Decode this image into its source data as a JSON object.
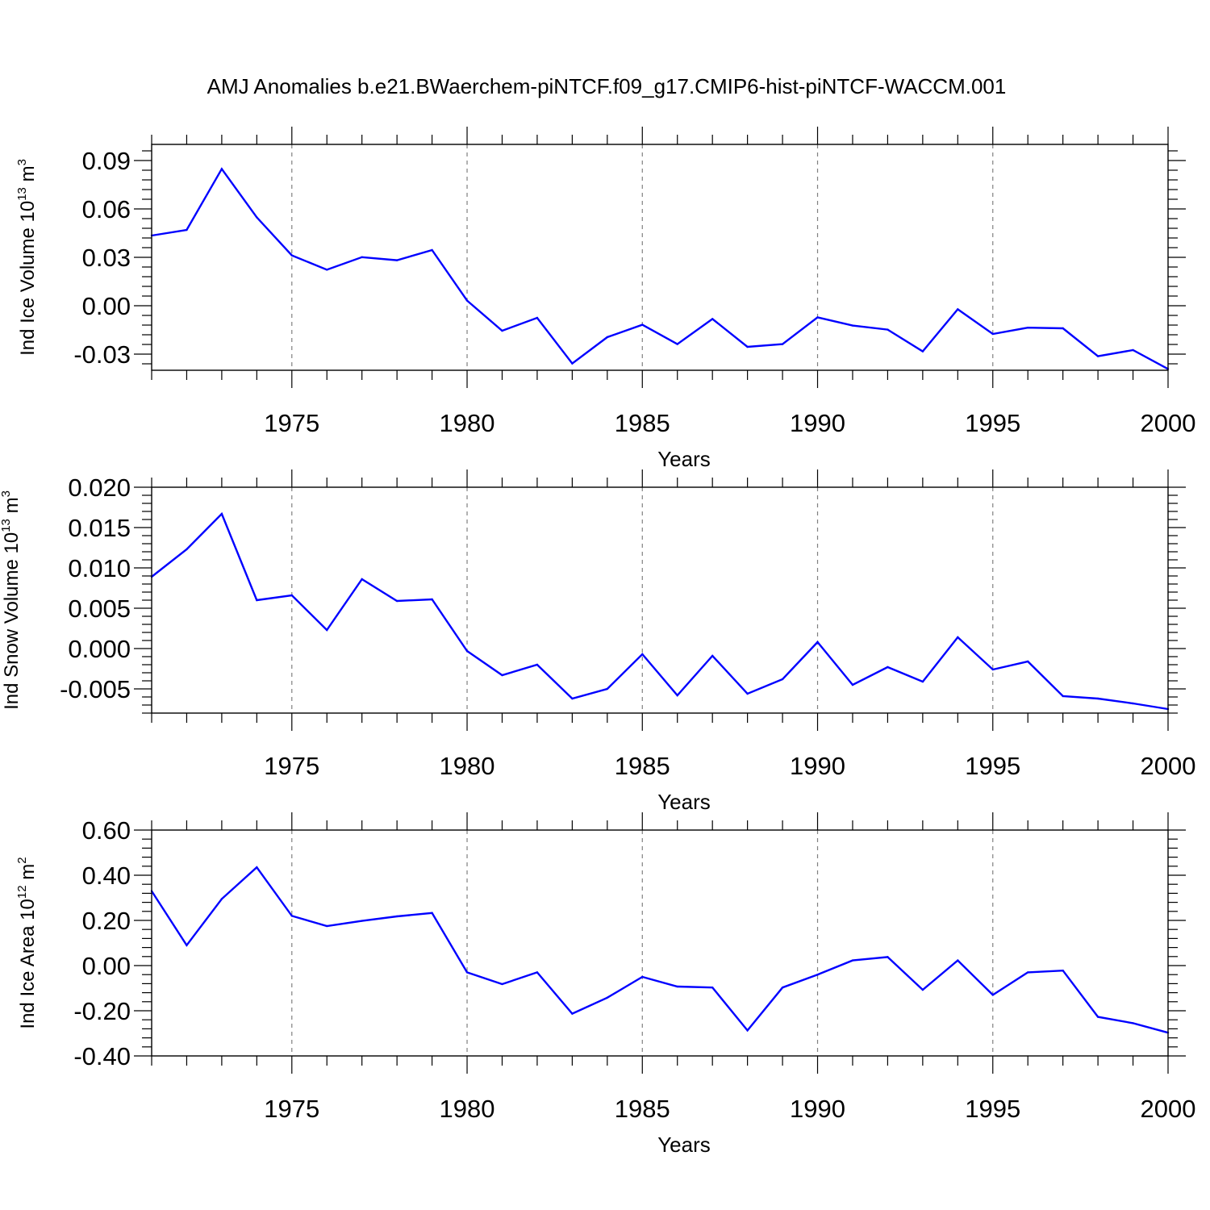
{
  "figure_title": "AMJ Anomalies b.e21.BWaerchem-piNTCF.f09_g17.CMIP6-hist-piNTCF-WACCM.001",
  "colors": {
    "line": "#0000ff",
    "axis": "#000000",
    "grid": "#808080"
  },
  "chart_data": [
    {
      "type": "line",
      "ylabel": {
        "text": "Ind Ice Volume 10",
        "exp": "13",
        "unit": " m",
        "unit_exp": "3"
      },
      "xlabel": "Years",
      "xlim": [
        1971,
        2000
      ],
      "ylim": [
        -0.04,
        0.1
      ],
      "yticks": [
        -0.03,
        0.0,
        0.03,
        0.06,
        0.09
      ],
      "ytick_labels": [
        "-0.03",
        "0.00",
        "0.03",
        "0.06",
        "0.09"
      ],
      "xticks": [
        1975,
        1980,
        1985,
        1990,
        1995,
        2000
      ],
      "xtick_labels": [
        "1975",
        "1980",
        "1985",
        "1990",
        "1995",
        "2000"
      ],
      "grid": "vertical dashed at major x ticks",
      "x": [
        1971,
        1972,
        1973,
        1974,
        1975,
        1976,
        1977,
        1978,
        1979,
        1980,
        1981,
        1982,
        1983,
        1984,
        1985,
        1986,
        1987,
        1988,
        1989,
        1990,
        1991,
        1992,
        1993,
        1994,
        1995,
        1996,
        1997,
        1998,
        1999,
        2000
      ],
      "values": [
        0.0435,
        0.047,
        0.0848,
        0.0548,
        0.0312,
        0.0223,
        0.0301,
        0.0282,
        0.0345,
        0.0032,
        -0.0155,
        -0.0075,
        -0.0358,
        -0.0195,
        -0.0118,
        -0.0238,
        -0.0082,
        -0.0255,
        -0.0238,
        -0.0072,
        -0.0123,
        -0.0148,
        -0.0283,
        -0.0022,
        -0.0175,
        -0.0136,
        -0.014,
        -0.0313,
        -0.0275,
        -0.0392
      ]
    },
    {
      "type": "line",
      "ylabel": {
        "text": "Ind Snow Volume 10",
        "exp": "13",
        "unit": " m",
        "unit_exp": "3"
      },
      "xlabel": "Years",
      "xlim": [
        1971,
        2000
      ],
      "ylim": [
        -0.008,
        0.02
      ],
      "yticks": [
        -0.005,
        0.0,
        0.005,
        0.01,
        0.015,
        0.02
      ],
      "ytick_labels": [
        "-0.005",
        "0.000",
        "0.005",
        "0.010",
        "0.015",
        "0.020"
      ],
      "xticks": [
        1975,
        1980,
        1985,
        1990,
        1995,
        2000
      ],
      "xtick_labels": [
        "1975",
        "1980",
        "1985",
        "1990",
        "1995",
        "2000"
      ],
      "grid": "vertical dashed at major x ticks",
      "x": [
        1971,
        1972,
        1973,
        1974,
        1975,
        1976,
        1977,
        1978,
        1979,
        1980,
        1981,
        1982,
        1983,
        1984,
        1985,
        1986,
        1987,
        1988,
        1989,
        1990,
        1991,
        1992,
        1993,
        1994,
        1995,
        1996,
        1997,
        1998,
        1999,
        2000
      ],
      "values": [
        0.0089,
        0.0123,
        0.0167,
        0.006,
        0.0066,
        0.0023,
        0.0086,
        0.0059,
        0.0061,
        -0.0003,
        -0.0033,
        -0.002,
        -0.0062,
        -0.005,
        -0.0007,
        -0.0058,
        -0.0009,
        -0.0056,
        -0.0038,
        0.0008,
        -0.0045,
        -0.0023,
        -0.0041,
        0.0014,
        -0.0026,
        -0.0016,
        -0.0059,
        -0.0062,
        -0.0068,
        -0.0075
      ]
    },
    {
      "type": "line",
      "ylabel": {
        "text": "Ind Ice Area 10",
        "exp": "12",
        "unit": " m",
        "unit_exp": "2"
      },
      "xlabel": "Years",
      "xlim": [
        1971,
        2000
      ],
      "ylim": [
        -0.4,
        0.6
      ],
      "yticks": [
        -0.4,
        -0.2,
        0.0,
        0.2,
        0.4,
        0.6
      ],
      "ytick_labels": [
        "-0.40",
        "-0.20",
        "0.00",
        "0.20",
        "0.40",
        "0.60"
      ],
      "xticks": [
        1975,
        1980,
        1985,
        1990,
        1995,
        2000
      ],
      "xtick_labels": [
        "1975",
        "1980",
        "1985",
        "1990",
        "1995",
        "2000"
      ],
      "grid": "vertical dashed at major x ticks",
      "x": [
        1971,
        1972,
        1973,
        1974,
        1975,
        1976,
        1977,
        1978,
        1979,
        1980,
        1981,
        1982,
        1983,
        1984,
        1985,
        1986,
        1987,
        1988,
        1989,
        1990,
        1991,
        1992,
        1993,
        1994,
        1995,
        1996,
        1997,
        1998,
        1999,
        2000
      ],
      "values": [
        0.33,
        0.09,
        0.295,
        0.435,
        0.22,
        0.175,
        0.198,
        0.218,
        0.233,
        -0.03,
        -0.082,
        -0.03,
        -0.213,
        -0.142,
        -0.05,
        -0.093,
        -0.097,
        -0.287,
        -0.097,
        -0.04,
        0.023,
        0.038,
        -0.107,
        0.023,
        -0.13,
        -0.03,
        -0.022,
        -0.227,
        -0.255,
        -0.297
      ]
    }
  ]
}
